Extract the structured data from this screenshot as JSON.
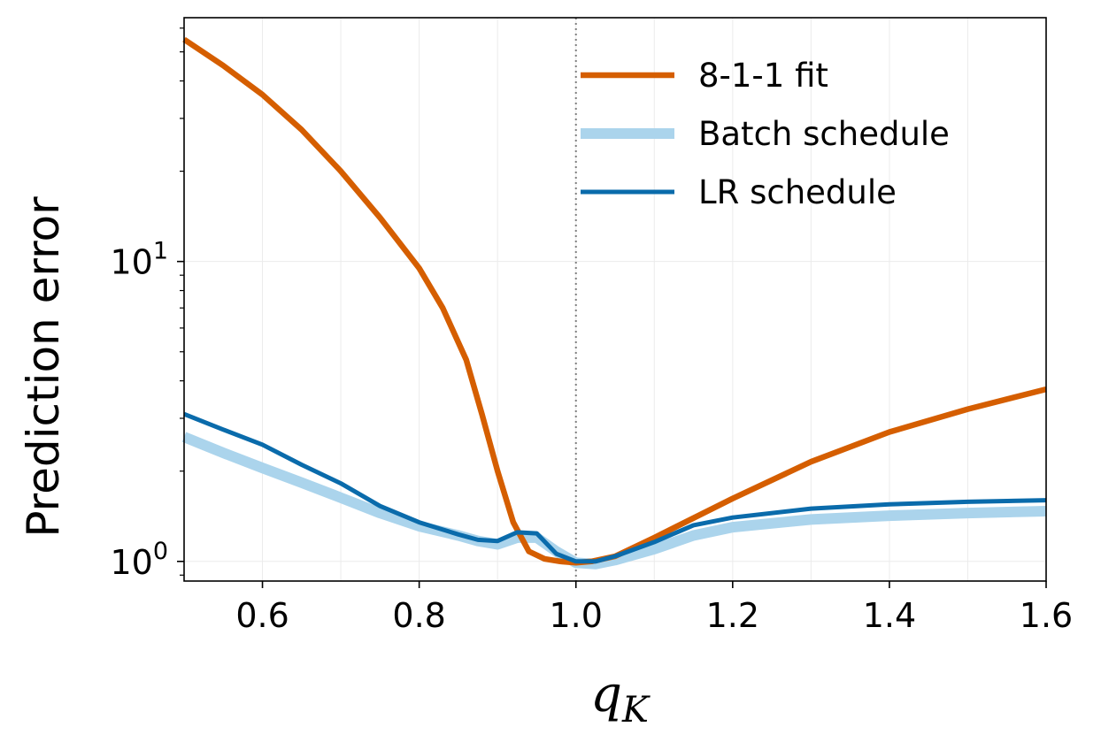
{
  "chart_data": {
    "type": "line",
    "xlabel_main": "q",
    "xlabel_sub": "K",
    "ylabel": "Prediction error",
    "xlim": [
      0.5,
      1.6
    ],
    "ylim": [
      0.86,
      65
    ],
    "yscale": "log",
    "grid": true,
    "legend_position": "top-right",
    "reference_line": {
      "x": 1.0,
      "style": "dotted",
      "color": "#808080"
    },
    "x_ticks": [
      {
        "value": 0.6,
        "label": "0.6"
      },
      {
        "value": 0.8,
        "label": "0.8"
      },
      {
        "value": 1.0,
        "label": "1.0"
      },
      {
        "value": 1.2,
        "label": "1.2"
      },
      {
        "value": 1.4,
        "label": "1.4"
      },
      {
        "value": 1.6,
        "label": "1.6"
      }
    ],
    "y_ticks": [
      {
        "value": 1,
        "base": "10",
        "exp": "0"
      },
      {
        "value": 10,
        "base": "10",
        "exp": "1"
      }
    ],
    "series": [
      {
        "name": "8-1-1 fit",
        "color": "#d55e00",
        "x": [
          0.5,
          0.55,
          0.6,
          0.65,
          0.7,
          0.75,
          0.8,
          0.83,
          0.86,
          0.88,
          0.9,
          0.92,
          0.94,
          0.96,
          0.98,
          1.0,
          1.02,
          1.05,
          1.1,
          1.2,
          1.3,
          1.4,
          1.5,
          1.6
        ],
        "y": [
          55,
          45,
          36,
          27.5,
          20,
          14,
          9.5,
          7.0,
          4.7,
          3.1,
          2.0,
          1.35,
          1.08,
          1.02,
          1.0,
          0.99,
          1.0,
          1.04,
          1.2,
          1.62,
          2.15,
          2.7,
          3.22,
          3.75
        ]
      },
      {
        "name": "Batch schedule",
        "color": "#abd4ec",
        "x": [
          0.5,
          0.55,
          0.6,
          0.65,
          0.7,
          0.75,
          0.8,
          0.85,
          0.875,
          0.9,
          0.925,
          0.95,
          0.975,
          1.0,
          1.025,
          1.05,
          1.1,
          1.15,
          1.2,
          1.3,
          1.4,
          1.5,
          1.6
        ],
        "y": [
          2.6,
          2.3,
          2.05,
          1.83,
          1.63,
          1.45,
          1.31,
          1.22,
          1.17,
          1.14,
          1.2,
          1.2,
          1.08,
          0.99,
          0.98,
          1.01,
          1.1,
          1.22,
          1.3,
          1.38,
          1.42,
          1.45,
          1.47
        ]
      },
      {
        "name": "LR schedule",
        "color": "#0a6bab",
        "x": [
          0.5,
          0.55,
          0.6,
          0.65,
          0.7,
          0.75,
          0.8,
          0.85,
          0.875,
          0.9,
          0.925,
          0.95,
          0.975,
          1.0,
          1.025,
          1.05,
          1.1,
          1.15,
          1.2,
          1.3,
          1.4,
          1.5,
          1.6
        ],
        "y": [
          3.1,
          2.75,
          2.45,
          2.1,
          1.82,
          1.53,
          1.35,
          1.23,
          1.18,
          1.17,
          1.25,
          1.24,
          1.06,
          1.0,
          1.0,
          1.04,
          1.16,
          1.32,
          1.4,
          1.5,
          1.55,
          1.58,
          1.6
        ]
      }
    ]
  }
}
